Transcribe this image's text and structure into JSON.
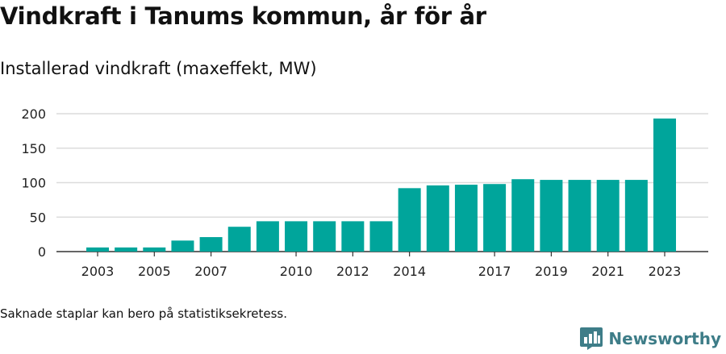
{
  "title": "Vindkraft i Tanums kommun, år för år",
  "subtitle": "Installerad vindkraft (maxeffekt, MW)",
  "footnote": "Saknade staplar kan bero på statistiksekretess.",
  "brand": {
    "name": "Newsworthy",
    "logo_icon": "bar-chart-speech-bubble-icon"
  },
  "colors": {
    "bar": "#00a59b",
    "grid": "#dcdcdc",
    "axis": "#333333",
    "brand": "#3e7d88"
  },
  "chart_data": {
    "type": "bar",
    "title": "Vindkraft i Tanums kommun, år för år",
    "subtitle": "Installerad vindkraft (maxeffekt, MW)",
    "xlabel": "",
    "ylabel": "",
    "categories": [
      "2003",
      "2004",
      "2005",
      "2006",
      "2007",
      "2008",
      "2009",
      "2010",
      "2011",
      "2012",
      "2013",
      "2014",
      "2015",
      "2016",
      "2017",
      "2018",
      "2019",
      "2020",
      "2021",
      "2022",
      "2023"
    ],
    "values": [
      6,
      6,
      6,
      16,
      21,
      36,
      44,
      44,
      44,
      44,
      44,
      92,
      96,
      97,
      98,
      105,
      104,
      104,
      104,
      104,
      193
    ],
    "x_tick_labels": [
      "2003",
      "2005",
      "2007",
      "2010",
      "2012",
      "2014",
      "2017",
      "2019",
      "2021",
      "2023"
    ],
    "y_ticks": [
      0,
      50,
      100,
      150,
      200
    ],
    "ylim": [
      0,
      200
    ],
    "grid": true,
    "legend": "none"
  }
}
